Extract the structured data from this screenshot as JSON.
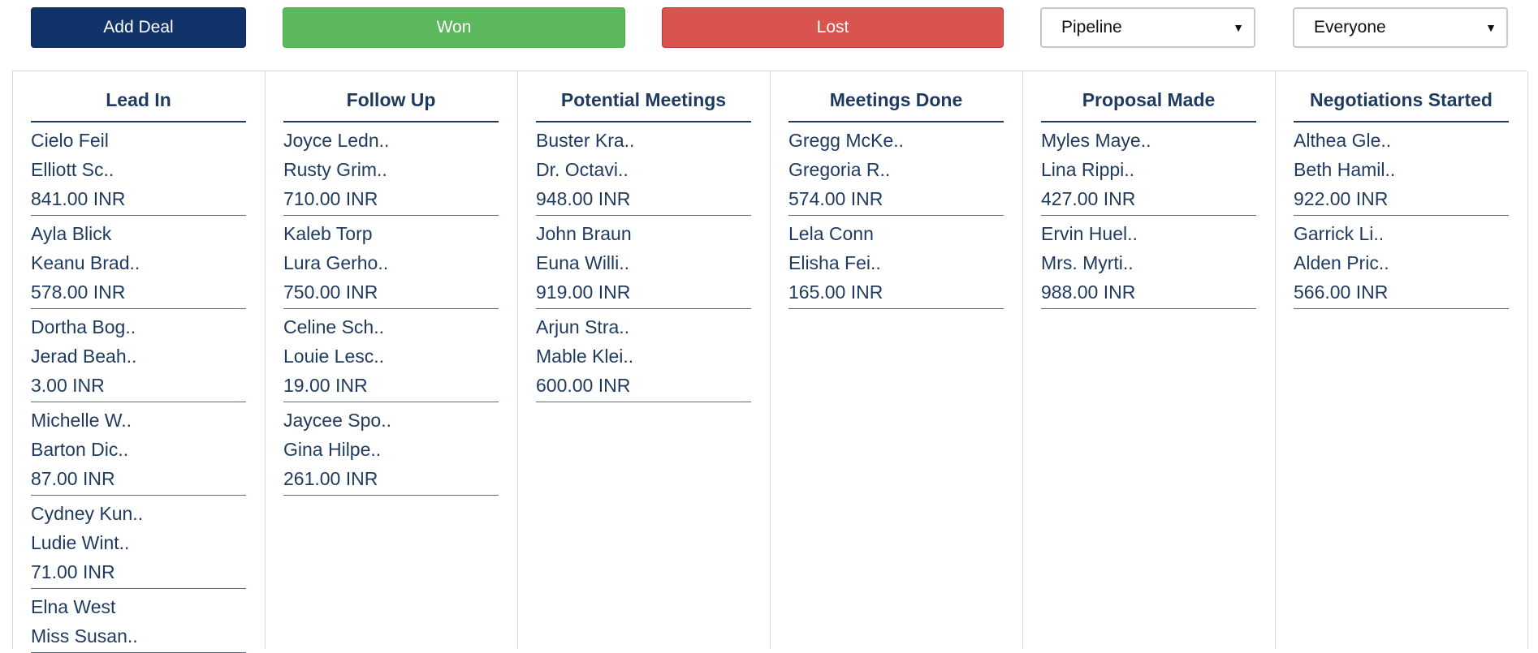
{
  "toolbar": {
    "add_deal_label": "Add Deal",
    "won_label": "Won",
    "lost_label": "Lost",
    "pipeline_select": "Pipeline",
    "owner_select": "Everyone"
  },
  "colors": {
    "add_deal": "#12336a",
    "won": "#5cb85c",
    "lost": "#d9534f",
    "heading": "#1f3a5f"
  },
  "columns": [
    {
      "title": "Lead In",
      "deals": [
        {
          "name": "Cielo Feil",
          "contact": "Elliott Sc..",
          "amount": "841.00 INR"
        },
        {
          "name": "Ayla Blick",
          "contact": "Keanu Brad..",
          "amount": "578.00 INR"
        },
        {
          "name": "Dortha Bog..",
          "contact": "Jerad Beah..",
          "amount": "3.00 INR"
        },
        {
          "name": "Michelle W..",
          "contact": "Barton Dic..",
          "amount": "87.00 INR"
        },
        {
          "name": "Cydney Kun..",
          "contact": "Ludie Wint..",
          "amount": "71.00 INR"
        },
        {
          "name": "Elna West",
          "contact": "Miss Susan..",
          "amount": ""
        }
      ]
    },
    {
      "title": "Follow Up",
      "deals": [
        {
          "name": "Joyce Ledn..",
          "contact": "Rusty Grim..",
          "amount": "710.00 INR"
        },
        {
          "name": "Kaleb Torp",
          "contact": "Lura Gerho..",
          "amount": "750.00 INR"
        },
        {
          "name": "Celine Sch..",
          "contact": "Louie Lesc..",
          "amount": "19.00 INR"
        },
        {
          "name": "Jaycee Spo..",
          "contact": "Gina Hilpe..",
          "amount": "261.00 INR"
        }
      ]
    },
    {
      "title": "Potential Meetings",
      "deals": [
        {
          "name": "Buster Kra..",
          "contact": "Dr. Octavi..",
          "amount": "948.00 INR"
        },
        {
          "name": "John Braun",
          "contact": "Euna Willi..",
          "amount": "919.00 INR"
        },
        {
          "name": "Arjun Stra..",
          "contact": "Mable Klei..",
          "amount": "600.00 INR"
        }
      ]
    },
    {
      "title": "Meetings Done",
      "deals": [
        {
          "name": "Gregg McKe..",
          "contact": "Gregoria R..",
          "amount": "574.00 INR"
        },
        {
          "name": "Lela Conn",
          "contact": "Elisha Fei..",
          "amount": "165.00 INR"
        }
      ]
    },
    {
      "title": "Proposal Made",
      "deals": [
        {
          "name": "Myles Maye..",
          "contact": "Lina Rippi..",
          "amount": "427.00 INR"
        },
        {
          "name": "Ervin Huel..",
          "contact": "Mrs. Myrti..",
          "amount": "988.00 INR"
        }
      ]
    },
    {
      "title": "Negotiations Started",
      "deals": [
        {
          "name": "Althea Gle..",
          "contact": "Beth Hamil..",
          "amount": "922.00 INR"
        },
        {
          "name": "Garrick Li..",
          "contact": "Alden Pric..",
          "amount": "566.00 INR"
        }
      ]
    }
  ]
}
